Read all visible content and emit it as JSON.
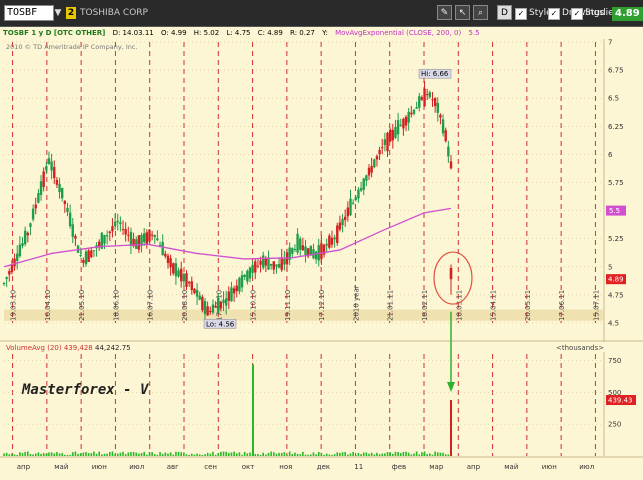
{
  "toolbar": {
    "symbol": "TOSBF",
    "link_number": "2",
    "company": "TOSHIBA CORP",
    "buttons": {
      "d": "D",
      "style": "Style",
      "drawings": "Drawings",
      "studies": "Studies"
    },
    "last_price": "4.89"
  },
  "info_bar": {
    "title": "TOSBF 1 y D [OTC OTHER]",
    "date": "D: 14.03.11",
    "open": "O: 4.99",
    "high": "H: 5.02",
    "low": "L: 4.75",
    "close": "C: 4.89",
    "range": "R: 0.27",
    "y": "Y:",
    "study": "MovAvgExponential (CLOSE, 200, 0)",
    "study_value": "5.5"
  },
  "copyright": "2010 © TD Ameritrade IP Company, Inc.",
  "annotations": {
    "high_label": "Hi: 6.66",
    "low_label": "Lo: 4.56",
    "watermark": "Masterforex - V"
  },
  "volume_panel": {
    "title": "VolumeAvg (20)",
    "value1": "439,428",
    "value2": "44,242.75",
    "units": "<thousands>",
    "last_volume": "439.43"
  },
  "colors": {
    "background": "#fdf6d5",
    "grid_red": "#d03030",
    "ema": "#d050d0",
    "up": "#1f9e4a",
    "down": "#d42020",
    "volume": "#26b826",
    "arrow": "#30b030"
  },
  "chart_data": {
    "type": "candlestick",
    "price_axis_ticks": [
      "7",
      "6.75",
      "6.5",
      "6.25",
      "6",
      "5.75",
      "5.5",
      "5.25",
      "5",
      "4.75",
      "4.5"
    ],
    "ylim": [
      4.5,
      7
    ],
    "volume_axis_ticks": [
      "750",
      "500",
      "250"
    ],
    "volume_ylim": [
      0,
      800
    ],
    "month_labels": [
      "апр",
      "май",
      "июн",
      "июл",
      "авг",
      "сен",
      "окт",
      "ноя",
      "дек",
      "11",
      "фев",
      "мар",
      "апр",
      "май",
      "июн",
      "июл"
    ],
    "date_labels": [
      "19.03.10",
      "16.04.10",
      "21.05.10",
      "18.06.10",
      "16.07.10",
      "20.08.10",
      "17.09.10",
      "15.10.10",
      "19.11.10",
      "17.12.10",
      "2010 year",
      "21.01.11",
      "18.02.11",
      "18.03.11",
      "15.04.11",
      "20.05.11",
      "17.06.11",
      "15.07.11"
    ],
    "ema_current": "5.5",
    "last_price_marker": "4.89",
    "high": 6.66,
    "low": 4.56,
    "price_path": [
      [
        0,
        4.85
      ],
      [
        0.04,
        5.3
      ],
      [
        0.075,
        5.95
      ],
      [
        0.1,
        5.6
      ],
      [
        0.13,
        5.05
      ],
      [
        0.16,
        5.2
      ],
      [
        0.19,
        5.4
      ],
      [
        0.22,
        5.2
      ],
      [
        0.25,
        5.3
      ],
      [
        0.28,
        5.0
      ],
      [
        0.31,
        4.85
      ],
      [
        0.34,
        4.6
      ],
      [
        0.37,
        4.7
      ],
      [
        0.4,
        4.9
      ],
      [
        0.43,
        5.05
      ],
      [
        0.46,
        5.0
      ],
      [
        0.49,
        5.2
      ],
      [
        0.52,
        5.1
      ],
      [
        0.55,
        5.25
      ],
      [
        0.58,
        5.55
      ],
      [
        0.61,
        5.85
      ],
      [
        0.635,
        6.1
      ],
      [
        0.66,
        6.25
      ],
      [
        0.685,
        6.4
      ],
      [
        0.705,
        6.55
      ],
      [
        0.72,
        6.45
      ],
      [
        0.735,
        6.2
      ],
      [
        0.745,
        5.9
      ]
    ],
    "ema_path": [
      [
        0,
        5.0
      ],
      [
        0.08,
        5.12
      ],
      [
        0.16,
        5.18
      ],
      [
        0.24,
        5.2
      ],
      [
        0.32,
        5.12
      ],
      [
        0.4,
        5.07
      ],
      [
        0.48,
        5.08
      ],
      [
        0.56,
        5.15
      ],
      [
        0.63,
        5.32
      ],
      [
        0.7,
        5.48
      ],
      [
        0.745,
        5.52
      ]
    ],
    "last_candle": {
      "x": 0.745,
      "open": 4.99,
      "high": 5.02,
      "low": 4.75,
      "close": 4.89
    },
    "volume_spikes": [
      {
        "x": 0.415,
        "value": 720
      },
      {
        "x": 0.745,
        "value": 439
      }
    ]
  }
}
